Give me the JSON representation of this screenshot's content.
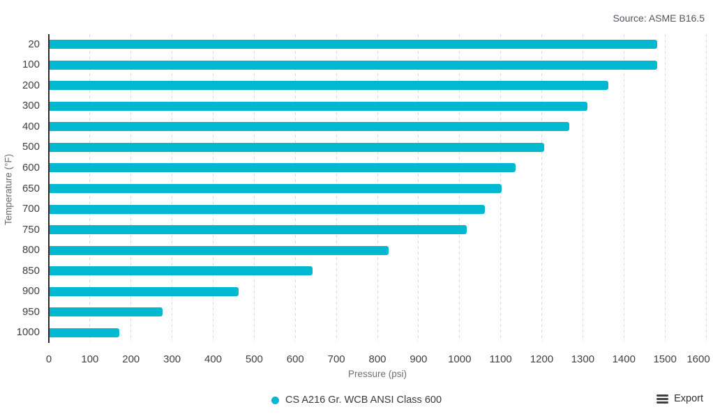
{
  "source_note": "Source: ASME B16.5",
  "legend": {
    "label": "CS A216 Gr. WCB ANSI Class 600",
    "marker_color": "#00b8d0"
  },
  "export_button": {
    "label": "Export",
    "icon": "hamburger-icon"
  },
  "chart_data": {
    "type": "bar",
    "orientation": "horizontal",
    "title": "",
    "categories": [
      "20",
      "100",
      "200",
      "300",
      "400",
      "500",
      "600",
      "650",
      "700",
      "750",
      "800",
      "850",
      "900",
      "950",
      "1000"
    ],
    "series": [
      {
        "name": "CS A216 Gr. WCB ANSI Class 600",
        "color": "#00b8d0",
        "values": [
          1480,
          1480,
          1360,
          1310,
          1265,
          1205,
          1135,
          1100,
          1060,
          1015,
          825,
          640,
          460,
          275,
          170
        ]
      }
    ],
    "xlabel": "Pressure (psi)",
    "ylabel": "Temperature (°F)",
    "xlim": [
      0,
      1600
    ],
    "xticks": [
      0,
      100,
      200,
      300,
      400,
      500,
      600,
      700,
      800,
      900,
      1000,
      1100,
      1200,
      1300,
      1400,
      1500,
      1600
    ],
    "grid": "vertical dashed",
    "legend_position": "bottom-center",
    "colors": {
      "bar": "#00b8d0",
      "axis_line": "#2a2a2a",
      "gridline": "#d9d9d9",
      "tick_text": "#404040",
      "axis_title_text": "#6e6e6e",
      "source_text": "#50565c"
    }
  }
}
